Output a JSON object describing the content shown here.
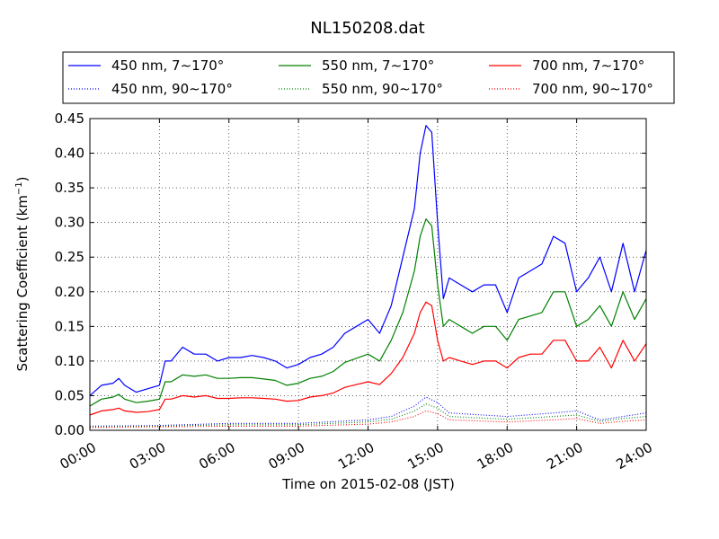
{
  "chart_data": {
    "type": "line",
    "title": "NL150208.dat",
    "xlabel": "Time on 2015-02-08 (JST)",
    "ylabel_main": "Scattering Coefficient (km",
    "ylabel_sup": "−1",
    "ylabel_end": ")",
    "xlim": [
      "2015-02-08 00:00",
      "2015-02-09 00:00"
    ],
    "ylim": [
      0,
      0.45
    ],
    "xticks": [
      "00:00",
      "03:00",
      "06:00",
      "09:00",
      "12:00",
      "15:00",
      "18:00",
      "21:00",
      "24:00"
    ],
    "yticks": [
      "0.00",
      "0.05",
      "0.10",
      "0.15",
      "0.20",
      "0.25",
      "0.30",
      "0.35",
      "0.40",
      "0.45"
    ],
    "grid": true,
    "legend_position": "top (above plot), 3 columns",
    "series": [
      {
        "name": "450 nm, 7∼170°",
        "color": "#0000ff",
        "style": "solid",
        "x": [
          "00:00",
          "00:30",
          "01:00",
          "01:15",
          "01:30",
          "02:00",
          "02:30",
          "03:00",
          "03:15",
          "03:30",
          "04:00",
          "04:30",
          "05:00",
          "05:30",
          "06:00",
          "06:30",
          "07:00",
          "07:30",
          "08:00",
          "08:30",
          "09:00",
          "09:30",
          "10:00",
          "10:30",
          "11:00",
          "11:30",
          "12:00",
          "12:30",
          "13:00",
          "13:30",
          "14:00",
          "14:15",
          "14:30",
          "14:45",
          "15:00",
          "15:15",
          "15:30",
          "16:00",
          "16:30",
          "17:00",
          "17:30",
          "18:00",
          "18:30",
          "19:00",
          "19:30",
          "20:00",
          "20:30",
          "21:00",
          "21:30",
          "22:00",
          "22:30",
          "23:00",
          "23:30",
          "24:00"
        ],
        "y": [
          0.05,
          0.065,
          0.068,
          0.075,
          0.065,
          0.055,
          0.06,
          0.065,
          0.1,
          0.1,
          0.12,
          0.11,
          0.11,
          0.1,
          0.105,
          0.105,
          0.108,
          0.105,
          0.1,
          0.09,
          0.095,
          0.105,
          0.11,
          0.12,
          0.14,
          0.15,
          0.16,
          0.14,
          0.18,
          0.25,
          0.32,
          0.4,
          0.44,
          0.43,
          0.3,
          0.19,
          0.22,
          0.21,
          0.2,
          0.21,
          0.21,
          0.17,
          0.22,
          0.23,
          0.24,
          0.28,
          0.27,
          0.2,
          0.22,
          0.25,
          0.2,
          0.27,
          0.2,
          0.26
        ]
      },
      {
        "name": "450 nm, 90∼170°",
        "color": "#0000ff",
        "style": "dotted",
        "x": [
          "00:00",
          "03:00",
          "06:00",
          "09:00",
          "12:00",
          "13:00",
          "14:00",
          "14:30",
          "15:00",
          "15:30",
          "18:00",
          "20:00",
          "21:00",
          "22:00",
          "23:00",
          "24:00"
        ],
        "y": [
          0.006,
          0.007,
          0.01,
          0.01,
          0.015,
          0.02,
          0.035,
          0.048,
          0.04,
          0.025,
          0.02,
          0.025,
          0.028,
          0.015,
          0.02,
          0.025
        ]
      },
      {
        "name": "550 nm, 7∼170°",
        "color": "#008000",
        "style": "solid",
        "x": [
          "00:00",
          "00:30",
          "01:00",
          "01:15",
          "01:30",
          "02:00",
          "02:30",
          "03:00",
          "03:15",
          "03:30",
          "04:00",
          "04:30",
          "05:00",
          "05:30",
          "06:00",
          "06:30",
          "07:00",
          "07:30",
          "08:00",
          "08:30",
          "09:00",
          "09:30",
          "10:00",
          "10:30",
          "11:00",
          "11:30",
          "12:00",
          "12:30",
          "13:00",
          "13:30",
          "14:00",
          "14:15",
          "14:30",
          "14:45",
          "15:00",
          "15:15",
          "15:30",
          "16:00",
          "16:30",
          "17:00",
          "17:30",
          "18:00",
          "18:30",
          "19:00",
          "19:30",
          "20:00",
          "20:30",
          "21:00",
          "21:30",
          "22:00",
          "22:30",
          "23:00",
          "23:30",
          "24:00"
        ],
        "y": [
          0.035,
          0.045,
          0.048,
          0.052,
          0.045,
          0.04,
          0.042,
          0.045,
          0.07,
          0.07,
          0.08,
          0.078,
          0.08,
          0.075,
          0.075,
          0.076,
          0.076,
          0.074,
          0.072,
          0.065,
          0.068,
          0.075,
          0.078,
          0.085,
          0.098,
          0.104,
          0.11,
          0.1,
          0.13,
          0.17,
          0.23,
          0.28,
          0.305,
          0.295,
          0.21,
          0.15,
          0.16,
          0.15,
          0.14,
          0.15,
          0.15,
          0.13,
          0.16,
          0.165,
          0.17,
          0.2,
          0.2,
          0.15,
          0.16,
          0.18,
          0.15,
          0.2,
          0.16,
          0.19
        ]
      },
      {
        "name": "550 nm, 90∼170°",
        "color": "#008000",
        "style": "dotted",
        "x": [
          "00:00",
          "03:00",
          "06:00",
          "09:00",
          "12:00",
          "13:00",
          "14:00",
          "14:30",
          "15:00",
          "15:30",
          "18:00",
          "20:00",
          "21:00",
          "22:00",
          "23:00",
          "24:00"
        ],
        "y": [
          0.005,
          0.006,
          0.008,
          0.008,
          0.012,
          0.016,
          0.028,
          0.038,
          0.032,
          0.02,
          0.016,
          0.02,
          0.022,
          0.013,
          0.017,
          0.02
        ]
      },
      {
        "name": "700 nm, 7∼170°",
        "color": "#ff0000",
        "style": "solid",
        "x": [
          "00:00",
          "00:30",
          "01:00",
          "01:15",
          "01:30",
          "02:00",
          "02:30",
          "03:00",
          "03:15",
          "03:30",
          "04:00",
          "04:30",
          "05:00",
          "05:30",
          "06:00",
          "06:30",
          "07:00",
          "07:30",
          "08:00",
          "08:30",
          "09:00",
          "09:30",
          "10:00",
          "10:30",
          "11:00",
          "11:30",
          "12:00",
          "12:30",
          "13:00",
          "13:30",
          "14:00",
          "14:15",
          "14:30",
          "14:45",
          "15:00",
          "15:15",
          "15:30",
          "16:00",
          "16:30",
          "17:00",
          "17:30",
          "18:00",
          "18:30",
          "19:00",
          "19:30",
          "20:00",
          "20:30",
          "21:00",
          "21:30",
          "22:00",
          "22:30",
          "23:00",
          "23:30",
          "24:00"
        ],
        "y": [
          0.022,
          0.028,
          0.03,
          0.032,
          0.028,
          0.026,
          0.027,
          0.03,
          0.045,
          0.045,
          0.05,
          0.048,
          0.05,
          0.046,
          0.046,
          0.047,
          0.047,
          0.046,
          0.045,
          0.042,
          0.043,
          0.048,
          0.05,
          0.054,
          0.062,
          0.066,
          0.07,
          0.066,
          0.082,
          0.105,
          0.14,
          0.17,
          0.185,
          0.18,
          0.13,
          0.1,
          0.105,
          0.1,
          0.095,
          0.1,
          0.1,
          0.09,
          0.105,
          0.11,
          0.11,
          0.13,
          0.13,
          0.1,
          0.1,
          0.12,
          0.09,
          0.13,
          0.1,
          0.125
        ]
      },
      {
        "name": "700 nm, 90∼170°",
        "color": "#ff0000",
        "style": "dotted",
        "x": [
          "00:00",
          "03:00",
          "06:00",
          "09:00",
          "12:00",
          "13:00",
          "14:00",
          "14:30",
          "15:00",
          "15:30",
          "18:00",
          "20:00",
          "21:00",
          "22:00",
          "23:00",
          "24:00"
        ],
        "y": [
          0.004,
          0.005,
          0.006,
          0.006,
          0.009,
          0.012,
          0.02,
          0.028,
          0.024,
          0.015,
          0.012,
          0.015,
          0.017,
          0.01,
          0.013,
          0.015
        ]
      }
    ]
  }
}
